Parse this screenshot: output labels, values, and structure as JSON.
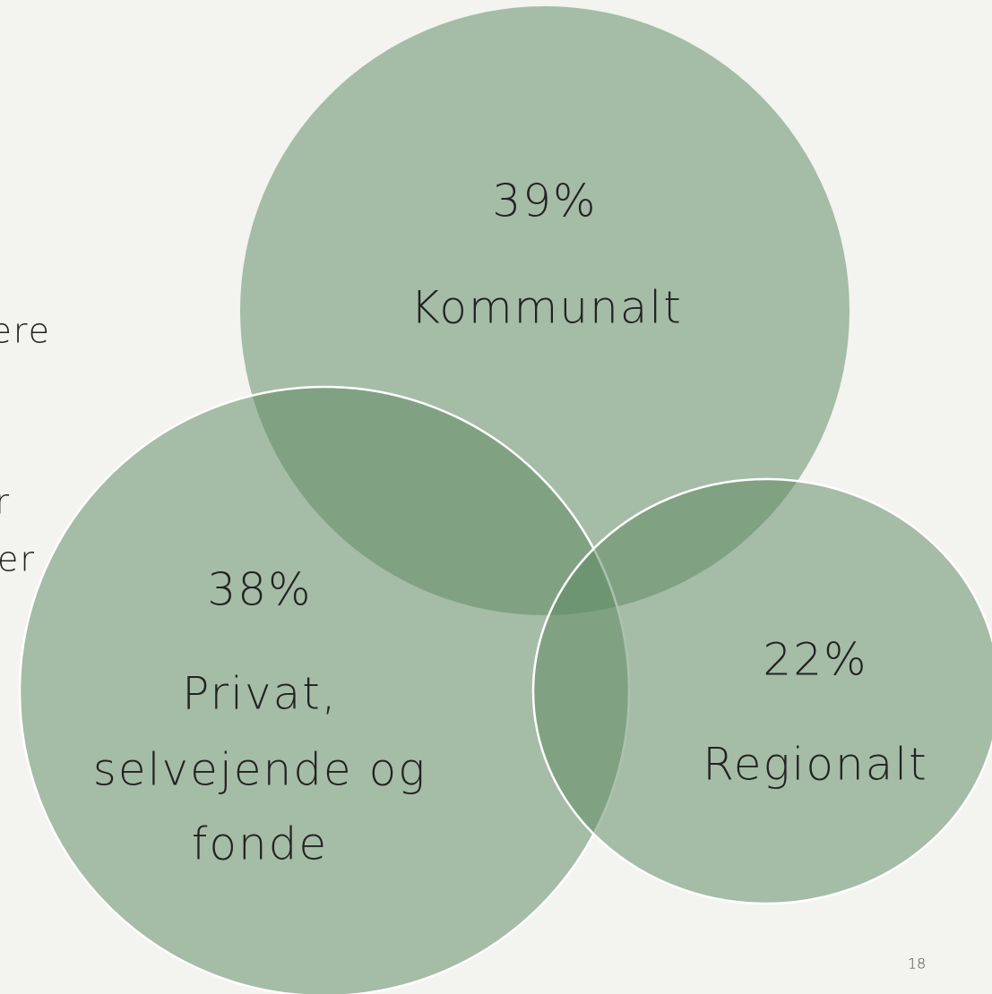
{
  "nodes": [
    {
      "value": "39%",
      "label_lines": [
        "Kommunalt"
      ]
    },
    {
      "value": "38%",
      "label_lines": [
        "Privat,",
        "selvejende og",
        "fonde"
      ]
    },
    {
      "value": "22%",
      "label_lines": [
        "Regionalt"
      ]
    }
  ],
  "side_text": [
    "ere",
    "r",
    "er"
  ],
  "page_number": "18"
}
